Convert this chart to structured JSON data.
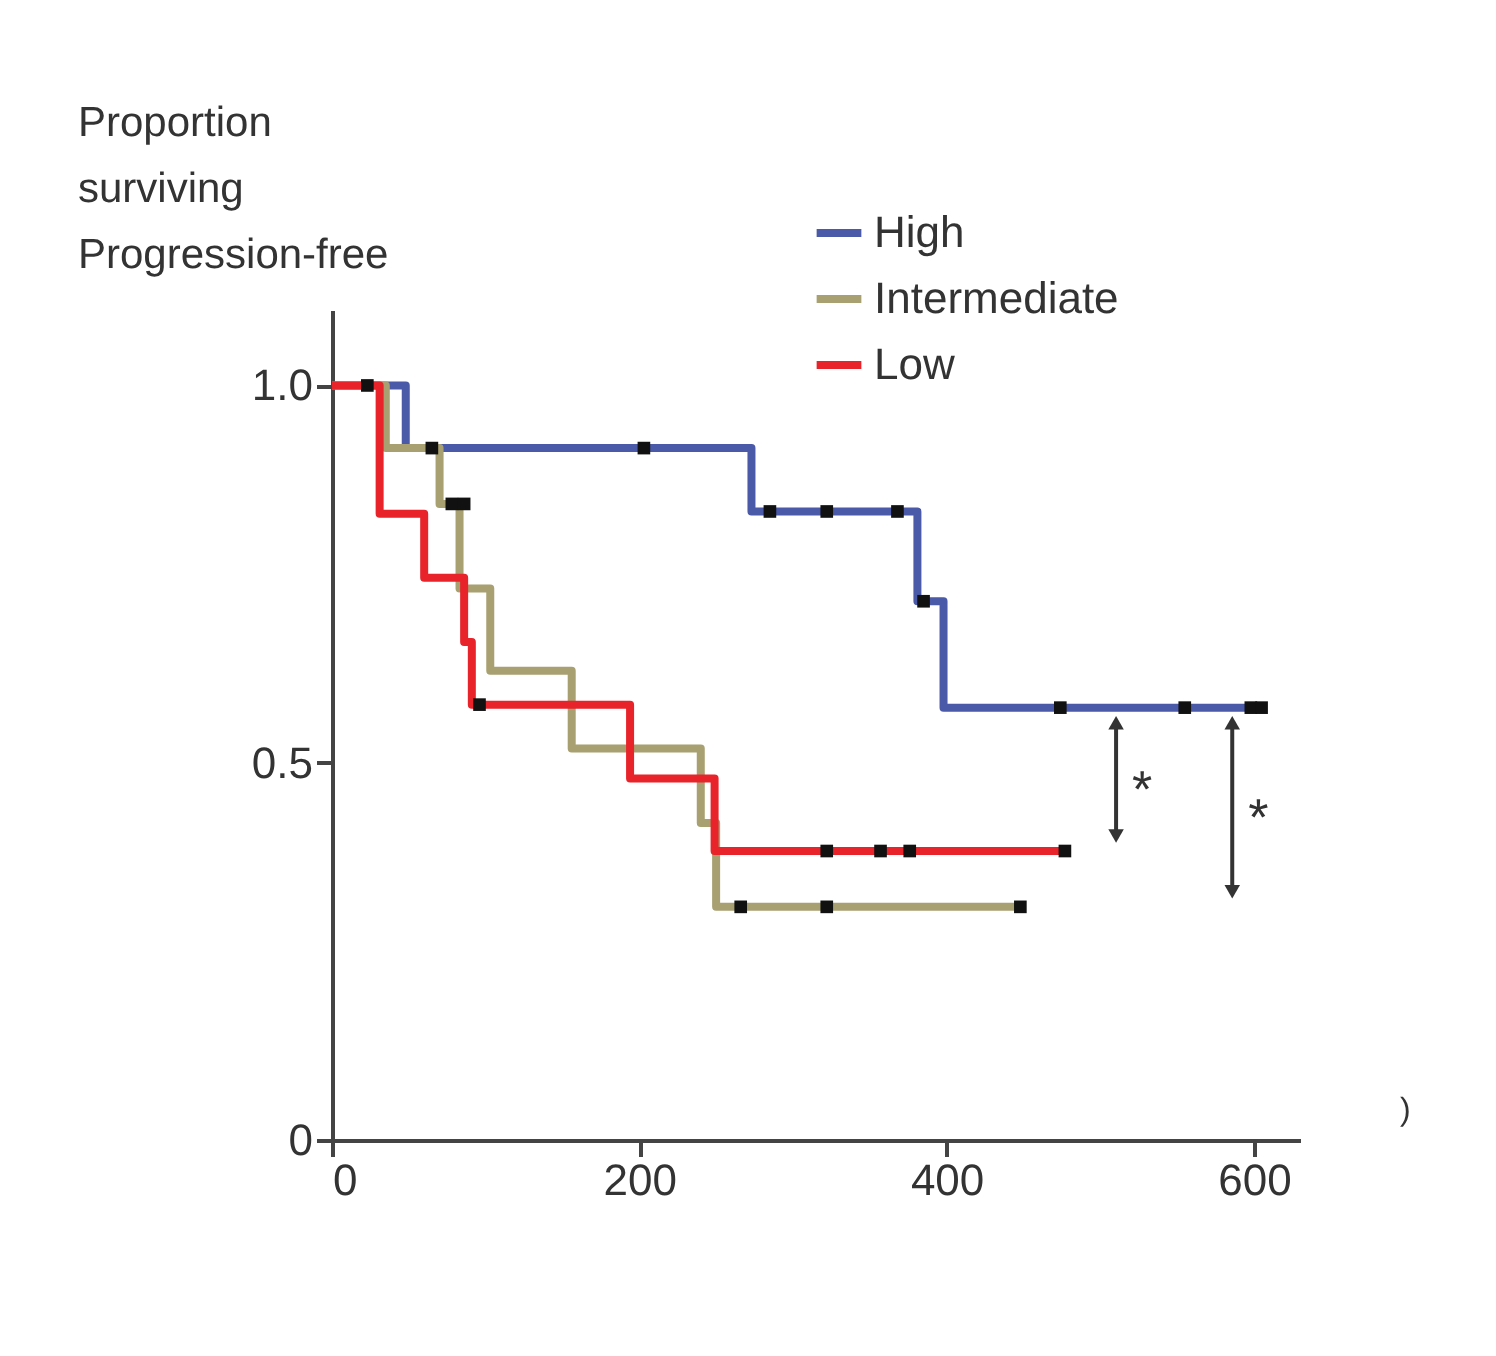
{
  "chart_data": {
    "type": "step",
    "ylabel": "Proportion\nsurviving\nProgression-free",
    "series": [
      {
        "name": "High",
        "color": "#4a5aa8",
        "x": [
          0,
          48,
          273,
          381,
          398,
          608
        ],
        "values": [
          1.0,
          0.917,
          0.833,
          0.714,
          0.573,
          0.573
        ]
      },
      {
        "name": "Intermediate",
        "color": "#a8a070",
        "x": [
          0,
          35,
          70,
          83,
          103,
          156,
          240,
          250,
          450
        ],
        "values": [
          1.0,
          0.917,
          0.843,
          0.731,
          0.622,
          0.519,
          0.42,
          0.309,
          0.309
        ]
      },
      {
        "name": "Low",
        "color": "#e8232a",
        "x": [
          0,
          31,
          60,
          86,
          91,
          194,
          249,
          478
        ],
        "values": [
          1.0,
          0.83,
          0.745,
          0.66,
          0.577,
          0.479,
          0.383,
          0.383
        ]
      },
      {
        "type": "scatter",
        "color": "#111111",
        "marker": "square",
        "x": [
          23,
          65,
          203,
          285,
          322,
          368,
          385,
          474,
          555,
          598,
          605
        ],
        "values": [
          1.0,
          0.917,
          0.917,
          0.833,
          0.833,
          0.833,
          0.714,
          0.573,
          0.573,
          0.573,
          0.573
        ]
      },
      {
        "type": "scatter",
        "color": "#111111",
        "marker": "square",
        "x": [
          78,
          86,
          266,
          322,
          448
        ],
        "values": [
          0.843,
          0.843,
          0.309,
          0.309,
          0.309
        ]
      },
      {
        "type": "scatter",
        "color": "#111111",
        "marker": "square",
        "x": [
          96,
          322,
          357,
          376,
          477
        ],
        "values": [
          0.577,
          0.383,
          0.383,
          0.383,
          0.383
        ]
      }
    ],
    "xlim": [
      0,
      630
    ],
    "xticks": [
      0,
      200,
      400,
      600
    ],
    "ylim": [
      0,
      1.1
    ],
    "yticks": [
      0,
      0.5,
      {
        "value": 1,
        "label": "1.0"
      }
    ],
    "annotations": [
      "*",
      "*",
      ")"
    ],
    "legend": "top right",
    "grid": false
  }
}
